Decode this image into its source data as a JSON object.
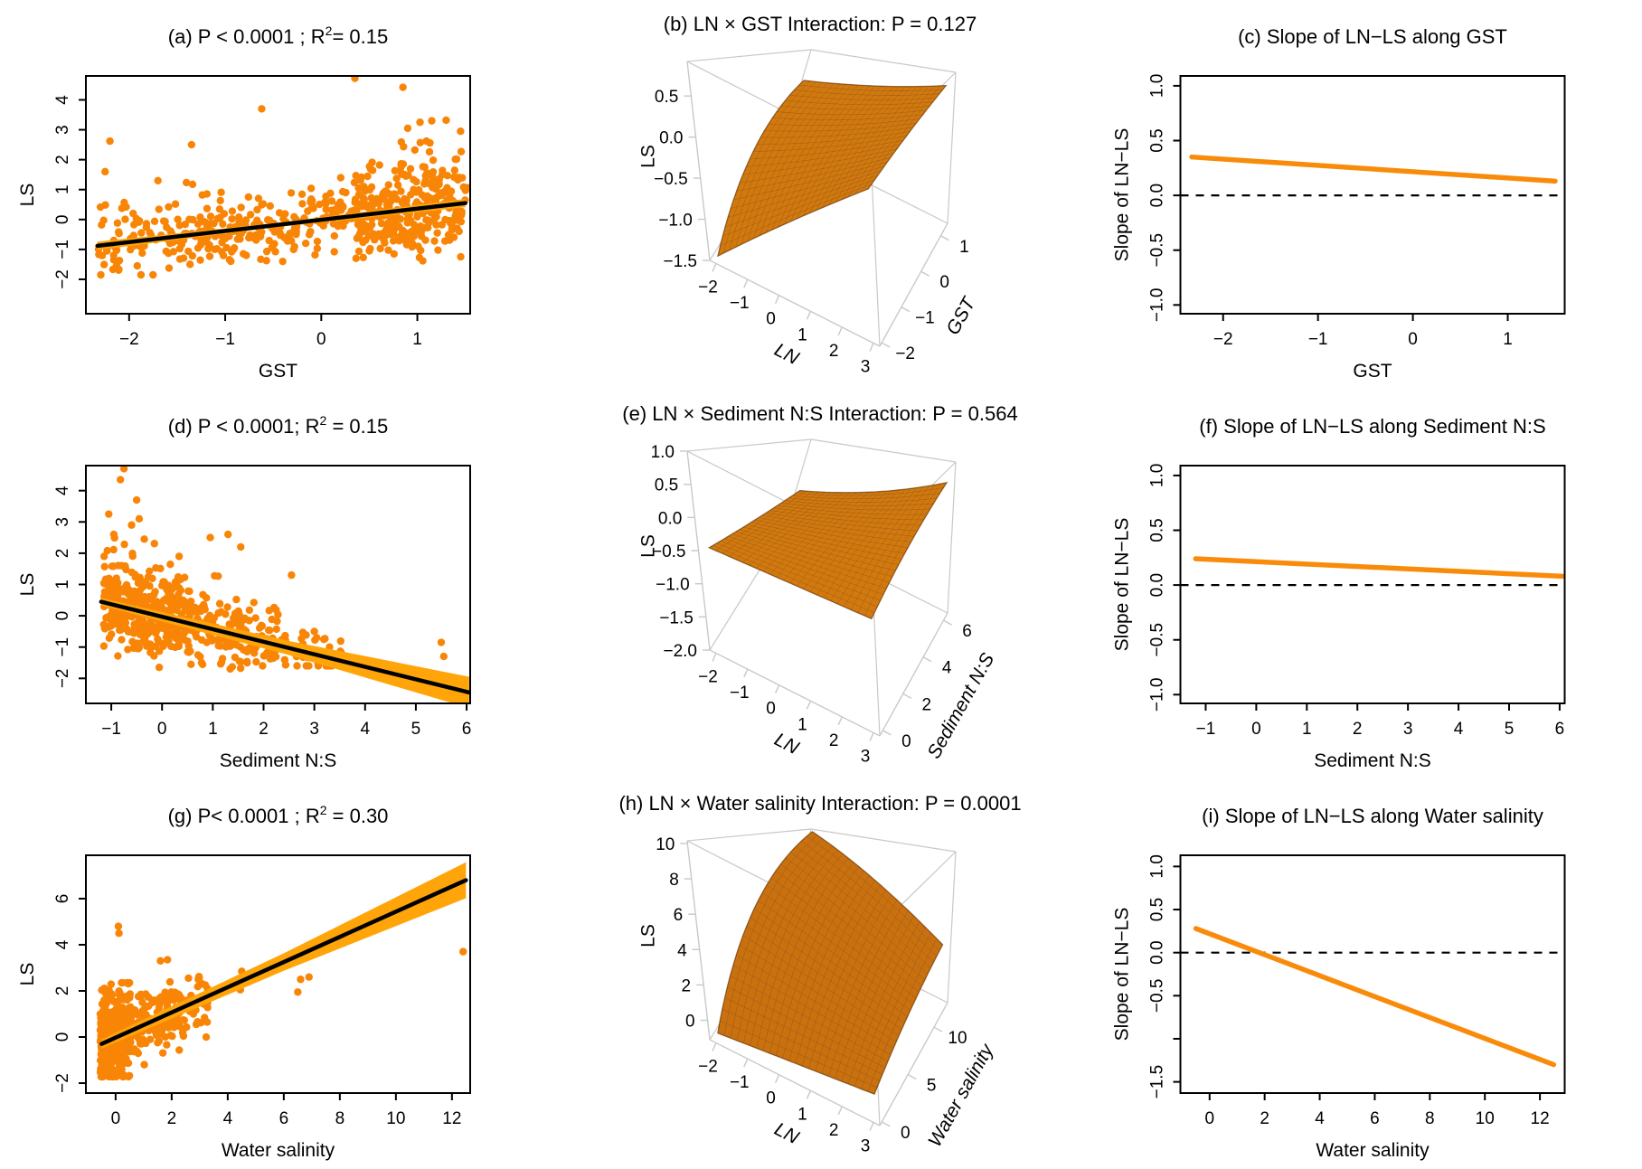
{
  "figure": {
    "background": "#FFFFFF",
    "rows": 3,
    "cols": 3
  },
  "colors": {
    "point": "#F98507",
    "band": "#FFA50A",
    "regression_line": "#000000",
    "slope_line": "#F98B0B",
    "dashed_zero": "#000000",
    "wireframe": "#C8C8C8",
    "axis": "#000000",
    "surface_default": "#D2790E"
  },
  "chart_data": [
    {
      "id": "a",
      "type": "scatter",
      "title": {
        "pre": "(a) P  < 0.0001 ; R",
        "sup": "2",
        "post": "=  0.15"
      },
      "xlabel": "GST",
      "ylabel": "LS",
      "xlim": [
        -2.45,
        1.55
      ],
      "ylim": [
        -3.15,
        4.8
      ],
      "xticks": [
        {
          "v": -2,
          "l": "−2"
        },
        {
          "v": -1,
          "l": "−1"
        },
        {
          "v": 0,
          "l": "0"
        },
        {
          "v": 1,
          "l": "1"
        }
      ],
      "yticks": [
        {
          "v": -2,
          "l": "−2"
        },
        {
          "v": -1,
          "l": "−1"
        },
        {
          "v": 0,
          "l": "0"
        },
        {
          "v": 1,
          "l": "1"
        },
        {
          "v": 2,
          "l": "2"
        },
        {
          "v": 3,
          "l": "3"
        },
        {
          "v": 4,
          "l": "4"
        }
      ],
      "line": {
        "x1": -2.33,
        "y1": -0.88,
        "x2": 1.5,
        "y2": 0.55
      },
      "band": {
        "w1": 0.14,
        "wm": 0.07,
        "w2": 0.14
      },
      "points": {
        "seed": 7,
        "groups": [
          {
            "n": 300,
            "x": [
              -2.33,
              0.35
            ],
            "sd": 0.55,
            "skew": [
              0.07,
              1.2
            ],
            "clip": [
              -1.85,
              3.0
            ]
          },
          {
            "n": 320,
            "x": [
              0.35,
              1.52
            ],
            "sd": 0.72,
            "skew": [
              0.16,
              1.3
            ],
            "clip": [
              -1.8,
              3.45
            ]
          }
        ]
      },
      "extra_points": [
        [
          0.35,
          4.72
        ],
        [
          0.85,
          4.42
        ],
        [
          -0.62,
          3.7
        ],
        [
          -1.35,
          2.5
        ],
        [
          -2.2,
          2.62
        ],
        [
          1.15,
          3.3
        ],
        [
          1.3,
          3.32
        ],
        [
          0.9,
          3.05
        ],
        [
          1.45,
          2.95
        ],
        [
          -2.25,
          1.6
        ],
        [
          -1.7,
          1.3
        ]
      ]
    },
    {
      "id": "b",
      "type": "surface3d",
      "title": "(b) LN × GST Interaction: P = 0.127",
      "xlabel": "LN",
      "ylabel": "GST",
      "zlabel": "LS",
      "xlim": [
        -2.2,
        3.2
      ],
      "ylim": [
        -2.1,
        1.35
      ],
      "zlim": [
        -1.5,
        0.92
      ],
      "xticks": [
        {
          "v": -2,
          "l": "−2"
        },
        {
          "v": -1,
          "l": "−1"
        },
        {
          "v": 0,
          "l": "0"
        },
        {
          "v": 1,
          "l": "1"
        },
        {
          "v": 2,
          "l": "2"
        },
        {
          "v": 3,
          "l": "3"
        }
      ],
      "yticks": [
        {
          "v": 1,
          "l": "1"
        },
        {
          "v": 0,
          "l": "0"
        },
        {
          "v": -1,
          "l": "−1"
        },
        {
          "v": -2,
          "l": "−2"
        }
      ],
      "zticks": [
        {
          "v": 0.5,
          "l": "0.5"
        },
        {
          "v": 0,
          "l": "0.0"
        },
        {
          "v": -0.5,
          "l": "−0.5"
        },
        {
          "v": -1,
          "l": "−1.0"
        },
        {
          "v": -1.5,
          "l": "−1.5"
        }
      ],
      "surface": {
        "x_range": [
          -2,
          3
        ],
        "y_range": [
          -2,
          1.2
        ],
        "z00": -1.45,
        "z10": 0.42,
        "z01": 0.2,
        "z11": 0.75
      },
      "color": "#D2790E"
    },
    {
      "id": "c",
      "type": "slope",
      "title": "(c) Slope of LN−LS along GST",
      "xlabel": "GST",
      "ylabel": "Slope of LN−LS",
      "xlim": [
        -2.45,
        1.6
      ],
      "ylim": [
        -1.08,
        1.09
      ],
      "xticks": [
        {
          "v": -2,
          "l": "−2"
        },
        {
          "v": -1,
          "l": "−1"
        },
        {
          "v": 0,
          "l": "0"
        },
        {
          "v": 1,
          "l": "1"
        }
      ],
      "yticks": [
        {
          "v": 1,
          "l": "1.0"
        },
        {
          "v": 0.5,
          "l": "0.5"
        },
        {
          "v": 0,
          "l": "0.0"
        },
        {
          "v": -0.5,
          "l": "−0.5"
        },
        {
          "v": -1,
          "l": "−1.0"
        }
      ],
      "line": {
        "x1": -2.33,
        "y1": 0.35,
        "x2": 1.5,
        "y2": 0.13
      },
      "zero_line": true
    },
    {
      "id": "d",
      "type": "scatter",
      "title": {
        "pre": "(d) P < 0.0001; R",
        "sup": "2",
        "post": " = 0.15"
      },
      "xlabel": "Sediment N:S",
      "ylabel": "LS",
      "xlim": [
        -1.5,
        6.07
      ],
      "ylim": [
        -2.8,
        4.8
      ],
      "xticks": [
        {
          "v": -1,
          "l": "−1"
        },
        {
          "v": 0,
          "l": "0"
        },
        {
          "v": 1,
          "l": "1"
        },
        {
          "v": 2,
          "l": "2"
        },
        {
          "v": 3,
          "l": "3"
        },
        {
          "v": 4,
          "l": "4"
        },
        {
          "v": 5,
          "l": "5"
        },
        {
          "v": 6,
          "l": "6"
        }
      ],
      "yticks": [
        {
          "v": -2,
          "l": "−2"
        },
        {
          "v": -1,
          "l": "−1"
        },
        {
          "v": 0,
          "l": "0"
        },
        {
          "v": 1,
          "l": "1"
        },
        {
          "v": 2,
          "l": "2"
        },
        {
          "v": 3,
          "l": "3"
        },
        {
          "v": 4,
          "l": "4"
        }
      ],
      "line": {
        "x1": -1.2,
        "y1": 0.45,
        "x2": 6.05,
        "y2": -2.45
      },
      "band": {
        "w1": 0.12,
        "wm": 0.22,
        "w2": 0.5
      },
      "points": {
        "seed": 11,
        "groups": [
          {
            "n": 380,
            "x": [
              -1.15,
              0.6
            ],
            "sd": 0.6,
            "skew": [
              0.13,
              1.6
            ],
            "clip": [
              -1.65,
              3.2
            ]
          },
          {
            "n": 150,
            "x": [
              0.6,
              2.3
            ],
            "sd": 0.55,
            "skew": [
              0.06,
              1.0
            ],
            "clip": [
              -1.7,
              2.0
            ]
          },
          {
            "n": 40,
            "x": [
              2.3,
              3.6
            ],
            "sd": 0.45,
            "skew": [
              0,
              0
            ],
            "clip": [
              -1.6,
              1.0
            ]
          }
        ]
      },
      "extra_points": [
        [
          5.5,
          -0.85
        ],
        [
          5.55,
          -1.3
        ],
        [
          -0.75,
          4.7
        ],
        [
          -0.82,
          4.35
        ],
        [
          -0.5,
          3.7
        ],
        [
          -0.45,
          3.1
        ],
        [
          -0.6,
          2.9
        ],
        [
          -0.95,
          2.6
        ],
        [
          1.3,
          2.6
        ],
        [
          1.55,
          2.2
        ],
        [
          0.95,
          2.5
        ],
        [
          2.55,
          1.3
        ],
        [
          -1.05,
          3.25
        ],
        [
          -0.35,
          2.45
        ],
        [
          3.0,
          -0.5
        ],
        [
          3.3,
          -1.0
        ]
      ]
    },
    {
      "id": "e",
      "type": "surface3d",
      "title": "(e) LN × Sediment N:S Interaction: P = 0.564",
      "xlabel": "LN",
      "ylabel": "Sediment N:S",
      "zlabel": "LS",
      "xlim": [
        -2.2,
        3.2
      ],
      "ylim": [
        -0.3,
        6.4
      ],
      "zlim": [
        -2,
        1
      ],
      "xticks": [
        {
          "v": -2,
          "l": "−2"
        },
        {
          "v": -1,
          "l": "−1"
        },
        {
          "v": 0,
          "l": "0"
        },
        {
          "v": 1,
          "l": "1"
        },
        {
          "v": 2,
          "l": "2"
        },
        {
          "v": 3,
          "l": "3"
        }
      ],
      "yticks": [
        {
          "v": 0,
          "l": "0"
        },
        {
          "v": 2,
          "l": "2"
        },
        {
          "v": 4,
          "l": "4"
        },
        {
          "v": 6,
          "l": "6"
        }
      ],
      "zticks": [
        {
          "v": 1,
          "l": "1.0"
        },
        {
          "v": 0.5,
          "l": "0.5"
        },
        {
          "v": 0,
          "l": "0.0"
        },
        {
          "v": -0.5,
          "l": "−0.5"
        },
        {
          "v": -1,
          "l": "−1.0"
        },
        {
          "v": -1.5,
          "l": "−1.5"
        },
        {
          "v": -2,
          "l": "−2.0"
        }
      ],
      "surface": {
        "x_range": [
          -2,
          3
        ],
        "y_range": [
          0,
          6.2
        ],
        "z00": -0.45,
        "z10": -0.28,
        "z01": -0.55,
        "z11": 0.62
      },
      "color": "#D2790E"
    },
    {
      "id": "f",
      "type": "slope",
      "title": "(f) Slope of LN−LS along Sediment N:S",
      "xlabel": "Sediment N:S",
      "ylabel": "Slope of LN−LS",
      "xlim": [
        -1.5,
        6.1
      ],
      "ylim": [
        -1.08,
        1.09
      ],
      "xticks": [
        {
          "v": -1,
          "l": "−1"
        },
        {
          "v": 0,
          "l": "0"
        },
        {
          "v": 1,
          "l": "1"
        },
        {
          "v": 2,
          "l": "2"
        },
        {
          "v": 3,
          "l": "3"
        },
        {
          "v": 4,
          "l": "4"
        },
        {
          "v": 5,
          "l": "5"
        },
        {
          "v": 6,
          "l": "6"
        }
      ],
      "yticks": [
        {
          "v": 1,
          "l": "1.0"
        },
        {
          "v": 0.5,
          "l": "0.5"
        },
        {
          "v": 0,
          "l": "0.0"
        },
        {
          "v": -0.5,
          "l": "−0.5"
        },
        {
          "v": -1,
          "l": "−1.0"
        }
      ],
      "line": {
        "x1": -1.2,
        "y1": 0.24,
        "x2": 6.05,
        "y2": 0.08
      },
      "zero_line": true
    },
    {
      "id": "g",
      "type": "scatter",
      "title": {
        "pre": "(g) P< 0.0001 ; R",
        "sup": "2",
        "post": " = 0.30"
      },
      "xlabel": "Water salinity",
      "ylabel": "LS",
      "xlim": [
        -1.06,
        12.65
      ],
      "ylim": [
        -2.43,
        7.88
      ],
      "xticks": [
        {
          "v": 0,
          "l": "0"
        },
        {
          "v": 2,
          "l": "2"
        },
        {
          "v": 4,
          "l": "4"
        },
        {
          "v": 6,
          "l": "6"
        },
        {
          "v": 8,
          "l": "8"
        },
        {
          "v": 10,
          "l": "10"
        },
        {
          "v": 12,
          "l": "12"
        }
      ],
      "yticks": [
        {
          "v": -2,
          "l": "−2"
        },
        {
          "v": 0,
          "l": "0"
        },
        {
          "v": 2,
          "l": "2"
        },
        {
          "v": 4,
          "l": "4"
        },
        {
          "v": 6,
          "l": "6"
        }
      ],
      "line": {
        "x1": -0.5,
        "y1": -0.3,
        "x2": 12.5,
        "y2": 6.8
      },
      "band": {
        "w1": 0.2,
        "wm": 0.38,
        "w2": 0.78
      },
      "points": {
        "seed": 13,
        "groups": [
          {
            "n": 430,
            "x": [
              -0.55,
              0.55
            ],
            "sd": 0.9,
            "skew": [
              0.1,
              1.1
            ],
            "clip": [
              -1.72,
              2.35
            ]
          },
          {
            "n": 110,
            "x": [
              0.55,
              2.2
            ],
            "sd": 0.75,
            "skew": [
              0.1,
              1.2
            ],
            "clip": [
              -1.2,
              3.4
            ]
          },
          {
            "n": 45,
            "x": [
              2.2,
              3.3
            ],
            "sd": 0.6,
            "skew": [
              0,
              0
            ],
            "clip": [
              -0.6,
              3.3
            ]
          }
        ]
      },
      "extra_points": [
        [
          4.3,
          2.4
        ],
        [
          4.45,
          2.05
        ],
        [
          4.5,
          2.85
        ],
        [
          6.5,
          1.95
        ],
        [
          6.6,
          2.5
        ],
        [
          6.9,
          2.6
        ],
        [
          12.4,
          3.7
        ],
        [
          0.1,
          4.8
        ],
        [
          0.12,
          4.5
        ],
        [
          1.85,
          3.35
        ],
        [
          1.6,
          3.3
        ],
        [
          2.95,
          2.5
        ],
        [
          3.05,
          0.62
        ],
        [
          3.1,
          2.3
        ],
        [
          2.6,
          2.55
        ]
      ]
    },
    {
      "id": "h",
      "type": "surface3d",
      "title": "(h) LN × Water salinity Interaction: P = 0.0001",
      "xlabel": "LN",
      "ylabel": "Water salinity",
      "zlabel": "LS",
      "xlim": [
        -2.2,
        3.2
      ],
      "ylim": [
        -0.4,
        12.6
      ],
      "zlim": [
        -1.1,
        10.15
      ],
      "xticks": [
        {
          "v": -2,
          "l": "−2"
        },
        {
          "v": -1,
          "l": "−1"
        },
        {
          "v": 0,
          "l": "0"
        },
        {
          "v": 1,
          "l": "1"
        },
        {
          "v": 2,
          "l": "2"
        },
        {
          "v": 3,
          "l": "3"
        }
      ],
      "yticks": [
        {
          "v": 0,
          "l": "0"
        },
        {
          "v": 5,
          "l": "5"
        },
        {
          "v": 10,
          "l": "10"
        }
      ],
      "zticks": [
        {
          "v": 10,
          "l": "10"
        },
        {
          "v": 8,
          "l": "8"
        },
        {
          "v": 6,
          "l": "6"
        },
        {
          "v": 4,
          "l": "4"
        },
        {
          "v": 2,
          "l": "2"
        },
        {
          "v": 0,
          "l": "0"
        }
      ],
      "surface": {
        "x_range": [
          -2,
          3
        ],
        "y_range": [
          0,
          12.2
        ],
        "z00": -0.75,
        "z10": 0.35,
        "z01": 10.0,
        "z11": 3.3
      },
      "color": "#C9700F"
    },
    {
      "id": "i",
      "type": "slope",
      "title": "(i) Slope of LN−LS along Water salinity",
      "xlabel": "Water salinity",
      "ylabel": "Slope of LN−LS",
      "xlim": [
        -1.06,
        12.9
      ],
      "ylim": [
        -1.63,
        1.13
      ],
      "xticks": [
        {
          "v": 0,
          "l": "0"
        },
        {
          "v": 2,
          "l": "2"
        },
        {
          "v": 4,
          "l": "4"
        },
        {
          "v": 6,
          "l": "6"
        },
        {
          "v": 8,
          "l": "8"
        },
        {
          "v": 10,
          "l": "10"
        },
        {
          "v": 12,
          "l": "12"
        }
      ],
      "yticks": [
        {
          "v": 1,
          "l": "1.0"
        },
        {
          "v": 0.5,
          "l": "0.5"
        },
        {
          "v": 0,
          "l": "0.0"
        },
        {
          "v": -0.5,
          "l": "−0.5"
        },
        {
          "v": -1,
          "l": ""
        },
        {
          "v": -1.5,
          "l": "−1.5"
        }
      ],
      "line": {
        "x1": -0.5,
        "y1": 0.28,
        "x2": 12.5,
        "y2": -1.3
      },
      "zero_line": true
    }
  ]
}
